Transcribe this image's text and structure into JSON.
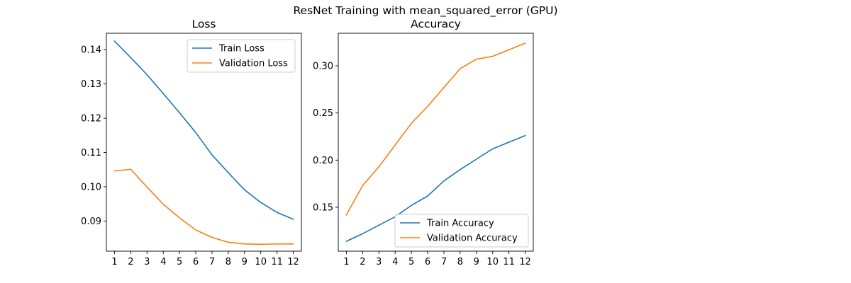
{
  "figure": {
    "title": "ResNet Training with mean_squared_error (GPU)"
  },
  "colors": {
    "train": "#1f77b4",
    "validation": "#ff7f0e",
    "axis": "#000000",
    "legend_border": "#cccccc"
  },
  "chart_data": [
    {
      "type": "line",
      "title": "Loss",
      "xlabel": "",
      "ylabel": "",
      "x": [
        1,
        2,
        3,
        4,
        5,
        6,
        7,
        8,
        9,
        10,
        11,
        12
      ],
      "xlim": [
        0.5,
        12.5
      ],
      "ylim": [
        0.0812,
        0.1448
      ],
      "yticks": [
        0.09,
        0.1,
        0.11,
        0.12,
        0.13,
        0.14
      ],
      "ytick_labels": [
        "0.09",
        "0.10",
        "0.11",
        "0.12",
        "0.13",
        "0.14"
      ],
      "grid": false,
      "legend_position": "upper right",
      "series": [
        {
          "name": "Train Loss",
          "color_key": "train",
          "values": [
            0.1425,
            0.1377,
            0.1327,
            0.1272,
            0.1216,
            0.1158,
            0.1093,
            0.1041,
            0.0991,
            0.0954,
            0.0925,
            0.0905
          ]
        },
        {
          "name": "Validation Loss",
          "color_key": "validation",
          "values": [
            0.1046,
            0.1051,
            0.0999,
            0.0949,
            0.0909,
            0.0874,
            0.0852,
            0.0838,
            0.0833,
            0.0832,
            0.0833,
            0.0833
          ]
        }
      ]
    },
    {
      "type": "line",
      "title": "Accuracy",
      "xlabel": "",
      "ylabel": "",
      "x": [
        1,
        2,
        3,
        4,
        5,
        6,
        7,
        8,
        9,
        10,
        11,
        12
      ],
      "xlim": [
        0.5,
        12.5
      ],
      "ylim": [
        0.1035,
        0.3345
      ],
      "yticks": [
        0.15,
        0.2,
        0.25,
        0.3
      ],
      "ytick_labels": [
        "0.15",
        "0.20",
        "0.25",
        "0.30"
      ],
      "grid": false,
      "legend_position": "lower right",
      "series": [
        {
          "name": "Train Accuracy",
          "color_key": "train",
          "values": [
            0.114,
            0.122,
            0.131,
            0.14,
            0.152,
            0.162,
            0.178,
            0.19,
            0.201,
            0.212,
            0.219,
            0.226
          ]
        },
        {
          "name": "Validation Accuracy",
          "color_key": "validation",
          "values": [
            0.142,
            0.173,
            0.193,
            0.216,
            0.239,
            0.257,
            0.277,
            0.297,
            0.307,
            0.31,
            0.317,
            0.324
          ]
        }
      ]
    }
  ]
}
